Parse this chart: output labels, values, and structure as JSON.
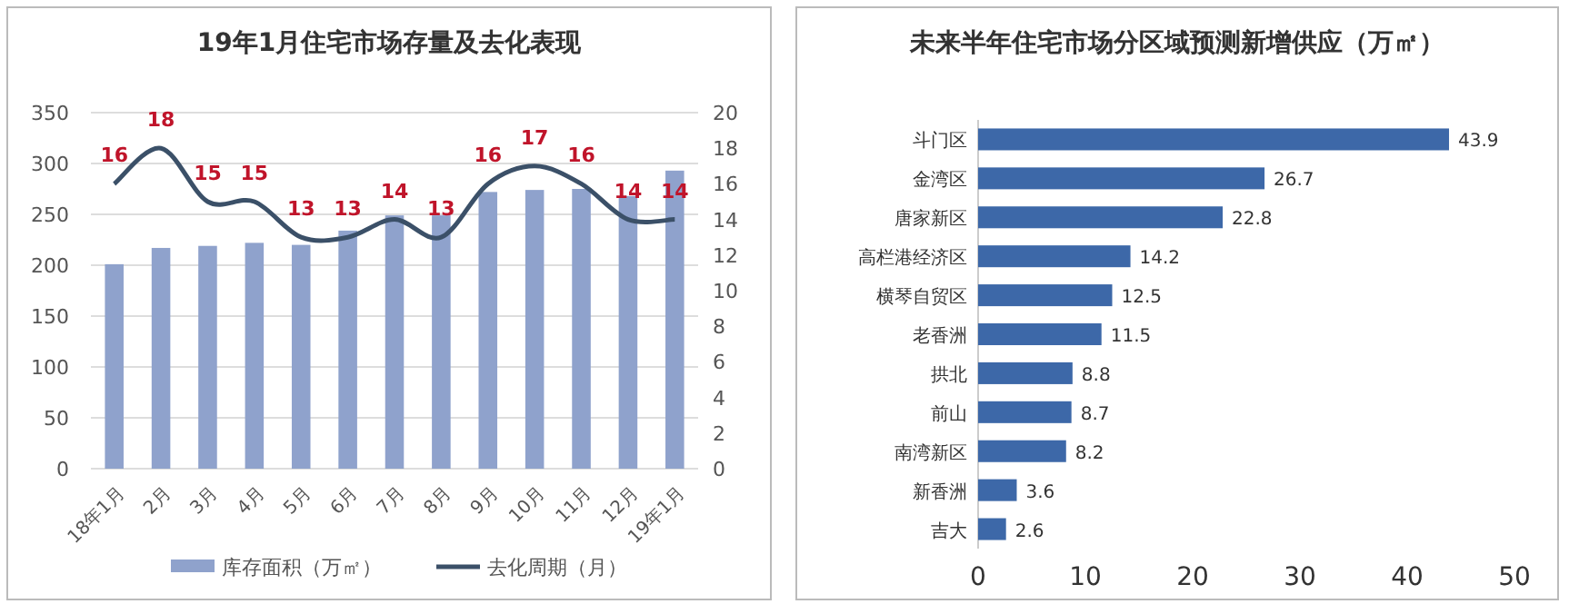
{
  "chart_data": [
    {
      "type": "bar",
      "title": "19年1月住宅市场存量及去化表现",
      "categories": [
        "18年1月",
        "2月",
        "3月",
        "4月",
        "5月",
        "6月",
        "7月",
        "8月",
        "9月",
        "10月",
        "11月",
        "12月",
        "19年1月"
      ],
      "series": [
        {
          "name": "库存面积（万㎡）",
          "type": "bar",
          "color": "#8fa2cc",
          "values": [
            201,
            217,
            219,
            222,
            220,
            234,
            249,
            249,
            272,
            274,
            275,
            268,
            293
          ]
        },
        {
          "name": "去化周期（月）",
          "type": "line",
          "axis": "y2",
          "color": "#3b5068",
          "values": [
            16,
            18,
            15,
            15,
            13,
            13,
            14,
            13,
            16,
            17,
            16,
            14,
            14
          ],
          "value_labels": [
            "16",
            "18",
            "15",
            "15",
            "13",
            "13",
            "14",
            "13",
            "16",
            "17",
            "16",
            "14",
            "14"
          ]
        }
      ],
      "ylim": [
        0,
        350
      ],
      "yticks": [
        0,
        50,
        100,
        150,
        200,
        250,
        300,
        350
      ],
      "y2lim": [
        0,
        20
      ],
      "y2ticks": [
        0,
        2,
        4,
        6,
        8,
        10,
        12,
        14,
        16,
        18,
        20
      ],
      "grid": "y",
      "legend": "bottom"
    },
    {
      "type": "bar",
      "orientation": "horizontal",
      "title": "未来半年住宅市场分区域预测新增供应（万㎡）",
      "categories": [
        "斗门区",
        "金湾区",
        "唐家新区",
        "高栏港经济区",
        "横琴自贸区",
        "老香洲",
        "拱北",
        "前山",
        "南湾新区",
        "新香洲",
        "吉大"
      ],
      "values": [
        43.9,
        26.7,
        22.8,
        14.2,
        12.5,
        11.5,
        8.8,
        8.7,
        8.2,
        3.6,
        2.6
      ],
      "color": "#3d68a8",
      "xlim": [
        0,
        50
      ],
      "xticks": [
        0,
        10,
        20,
        30,
        40,
        50
      ],
      "data_labels": true
    }
  ]
}
